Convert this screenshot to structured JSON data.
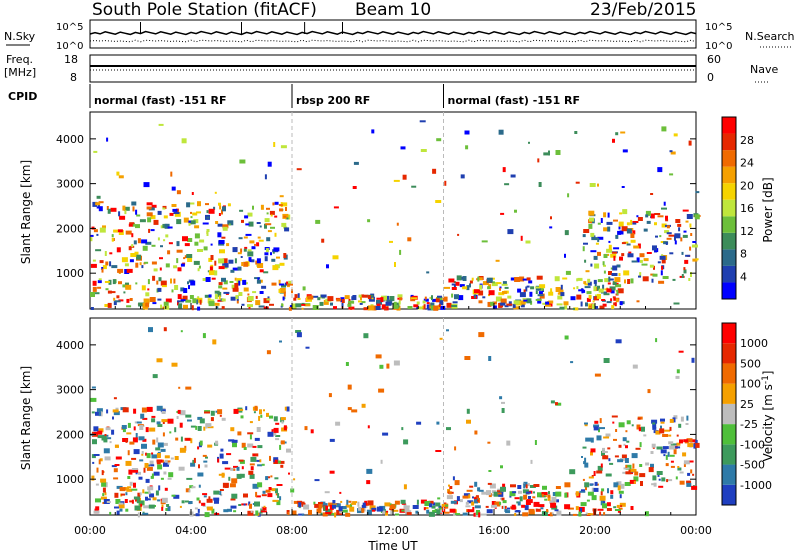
{
  "header": {
    "station": "South Pole Station (fitACF)",
    "beam": "Beam 10",
    "date": "23/Feb/2015"
  },
  "noise_panel": {
    "left_label": "N.Sky",
    "right_label": "N.Search",
    "left_ticks": [
      "10^5",
      "10^0"
    ],
    "right_ticks": [
      "10^5",
      "10^0"
    ]
  },
  "freq_panel": {
    "left_label_1": "Freq.",
    "left_label_2": "[MHz]",
    "right_label": "Nave",
    "left_ticks": [
      "18",
      "8"
    ],
    "right_ticks": [
      "60",
      "0"
    ]
  },
  "cpid": {
    "label": "CPID",
    "segments": [
      {
        "text": "normal (fast) -151 RF",
        "start_hour": 0,
        "end_hour": 8
      },
      {
        "text": "rbsp 200 RF",
        "start_hour": 8,
        "end_hour": 14
      },
      {
        "text": "normal (fast) -151 RF",
        "start_hour": 14,
        "end_hour": 24
      }
    ]
  },
  "x_axis": {
    "title": "Time UT",
    "ticks": [
      "00:00",
      "04:00",
      "08:00",
      "12:00",
      "16:00",
      "20:00",
      "00:00"
    ]
  },
  "chart_data": [
    {
      "type": "heatmap",
      "name": "power",
      "ylabel": "Slant Range [km]",
      "xlim_hours": [
        0,
        24
      ],
      "ylim": [
        200,
        4600
      ],
      "yticks": [
        1000,
        2000,
        3000,
        4000
      ],
      "colorbar": {
        "label": "Power [dB]",
        "ticks": [
          "4",
          "8",
          "12",
          "16",
          "20",
          "24",
          "28"
        ],
        "colors": [
          "#0000ff",
          "#1f3fb0",
          "#2b6a8a",
          "#3c8c5a",
          "#6cbf3a",
          "#bfe63c",
          "#f5d300",
          "#f5a000",
          "#f06a00",
          "#e62800",
          "#ff0000"
        ]
      }
    },
    {
      "type": "heatmap",
      "name": "velocity",
      "ylabel": "Slant Range [km]",
      "xlim_hours": [
        0,
        24
      ],
      "ylim": [
        200,
        4600
      ],
      "yticks": [
        1000,
        2000,
        3000,
        4000
      ],
      "colorbar": {
        "label": "Velocity [m s^-1]",
        "ticks": [
          "1000",
          "500",
          "100",
          "25",
          "-25",
          "-100",
          "-500",
          "-1000"
        ],
        "colors": [
          "#1f3fc0",
          "#2e7aa8",
          "#3d9a5c",
          "#4fbf3a",
          "#bdbdbd",
          "#f5a000",
          "#f06a00",
          "#e62800",
          "#ff0000"
        ]
      }
    }
  ]
}
